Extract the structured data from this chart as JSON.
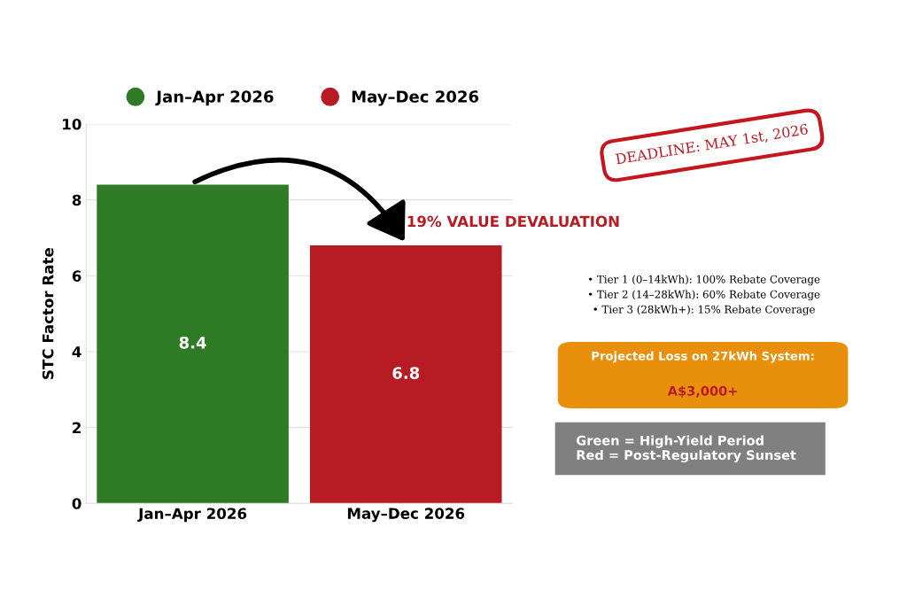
{
  "chart_data": {
    "type": "bar",
    "ylabel": "STC Factor Rate",
    "categories": [
      "Jan–Apr 2026",
      "May–Dec 2026"
    ],
    "series": [
      {
        "name": "Jan–Apr 2026",
        "color": "#2e7a25",
        "values": [
          8.4,
          null
        ]
      },
      {
        "name": "May–Dec 2026",
        "color": "#b71c25",
        "values": [
          null,
          6.8
        ]
      }
    ],
    "ylim": [
      0,
      10
    ],
    "yticks": [
      0,
      2,
      4,
      6,
      8,
      10
    ],
    "grid": "y",
    "legend": "top",
    "data_labels": true,
    "annotations": [
      "19% VALUE DEVALUATION",
      "DEADLINE: MAY 1st, 2026",
      "• Tier 1 (0–14kWh): 100% Rebate Coverage\n• Tier 2 (14–28kWh): 60% Rebate Coverage\n• Tier 3 (28kWh+): 15% Rebate Coverage",
      "Projected Loss on 27kWh System:",
      "A$3,000+",
      "Green = High-Yield Period\nRed = Post-Regulatory Sunset"
    ]
  }
}
